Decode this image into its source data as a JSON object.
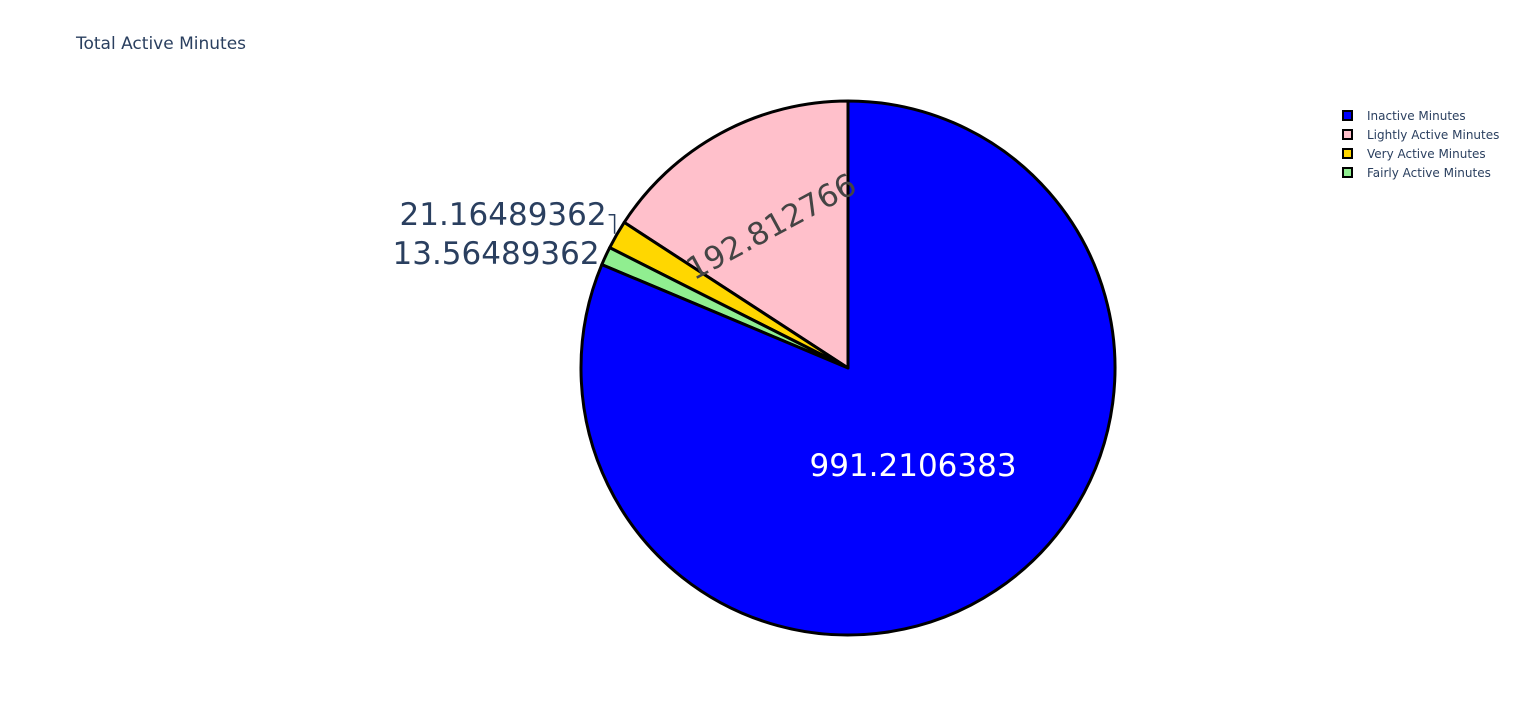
{
  "chart_data": {
    "type": "pie",
    "title": "Total Active Minutes",
    "direction": "clockwise",
    "start_angle_deg": 90,
    "slice_border_color": "#000000",
    "legend_placement": "top-right",
    "slices": [
      {
        "name": "Lightly Active Minutes",
        "value": 192.812766,
        "label": "192.812766",
        "color": "#ffc0cb",
        "label_color": "#444444",
        "label_position": "inside"
      },
      {
        "name": "Very Active Minutes",
        "value": 21.16489362,
        "label": "21.16489362",
        "color": "#ffd700",
        "label_color": "#2a3f5f",
        "label_position": "outside"
      },
      {
        "name": "Fairly Active Minutes",
        "value": 13.56489362,
        "label": "13.56489362",
        "color": "#90ee90",
        "label_color": "#2a3f5f",
        "label_position": "outside"
      },
      {
        "name": "Inactive Minutes",
        "value": 991.2106383,
        "label": "991.2106383",
        "color": "#0000ff",
        "label_color": "#ffffff",
        "label_position": "inside"
      }
    ],
    "legend_order": [
      "Inactive Minutes",
      "Lightly Active Minutes",
      "Very Active Minutes",
      "Fairly Active Minutes"
    ]
  }
}
